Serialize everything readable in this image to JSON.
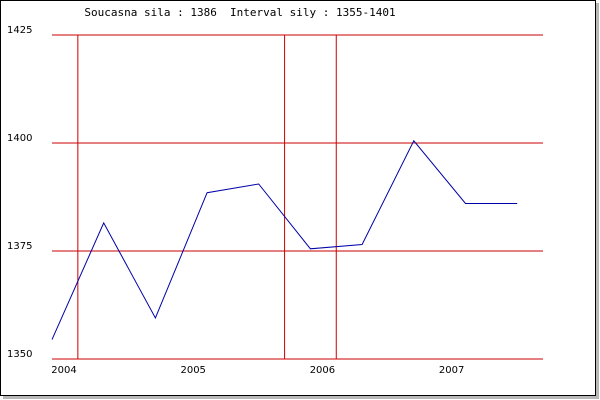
{
  "chart_data": {
    "type": "line",
    "title": "Soucasna sila : 1386  Interval sily : 1355-1401",
    "xlabel": "",
    "ylabel": "",
    "ylim": [
      1350,
      1425
    ],
    "xlim": [
      2004.0,
      2007.8
    ],
    "y_ticks": [
      "1350",
      "1375",
      "1400",
      "1425"
    ],
    "x_ticks": [
      "2004",
      "2005",
      "2006",
      "2007"
    ],
    "x_tick_values": [
      2004.0,
      2005.0,
      2006.0,
      2007.0
    ],
    "vertical_gridlines_at": [
      2004.2,
      2005.8,
      2006.2
    ],
    "grid": true,
    "grid_color": "#cc0000",
    "line_color": "#0000aa",
    "x": [
      2004.0,
      2004.4,
      2004.8,
      2005.2,
      2005.6,
      2006.0,
      2006.4,
      2006.8,
      2007.2,
      2007.6
    ],
    "values": [
      1354.5,
      1381.5,
      1359.5,
      1388.5,
      1390.5,
      1375.5,
      1376.5,
      1400.5,
      1386.0,
      1386.0
    ]
  }
}
